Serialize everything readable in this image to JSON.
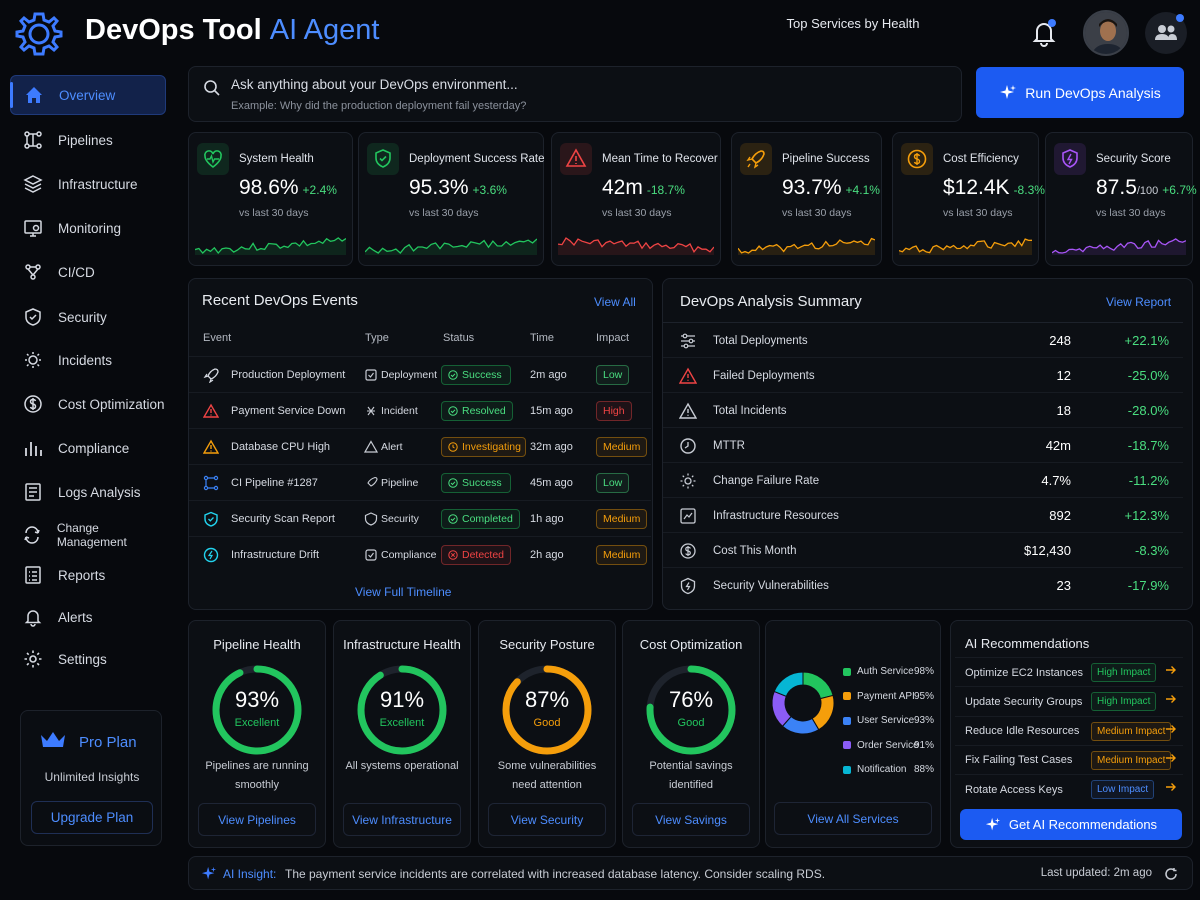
{
  "app": {
    "title_main": "DevOps Tool",
    "title_accent": "AI Agent"
  },
  "sidebar": {
    "items": [
      {
        "label": "Overview",
        "icon": "home-icon"
      },
      {
        "label": "Pipelines",
        "icon": "pipeline-icon"
      },
      {
        "label": "Infrastructure",
        "icon": "server-icon"
      },
      {
        "label": "Monitoring",
        "icon": "monitor-icon"
      },
      {
        "label": "CI/CD",
        "icon": "cicd-icon"
      },
      {
        "label": "Security",
        "icon": "shield-icon"
      },
      {
        "label": "Incidents",
        "icon": "incident-icon"
      },
      {
        "label": "Cost Optimization",
        "icon": "dollar-icon"
      },
      {
        "label": "Compliance",
        "icon": "chart-icon"
      },
      {
        "label": "Logs Analysis",
        "icon": "logs-icon"
      },
      {
        "label": "Change Management",
        "icon": "change-icon"
      },
      {
        "label": "Reports",
        "icon": "report-icon"
      },
      {
        "label": "Alerts",
        "icon": "bell-icon"
      },
      {
        "label": "Settings",
        "icon": "gear-icon"
      }
    ],
    "plan": {
      "title": "Pro Plan",
      "subtitle": "Unlimited Insights",
      "button": "Upgrade Plan"
    }
  },
  "search": {
    "placeholder": "Ask anything about your DevOps environment...",
    "example": "Example: Why did the production deployment fail yesterday?",
    "run_button": "Run DevOps Analysis"
  },
  "kpis": [
    {
      "title": "System Health",
      "value": "98.6%",
      "unit": "",
      "delta": "+2.4%",
      "sub": "vs last 30 days",
      "color": "#22c55e"
    },
    {
      "title": "Deployment Success Rate",
      "value": "95.3%",
      "unit": "",
      "delta": "+3.6%",
      "sub": "vs last 30 days",
      "color": "#22c55e"
    },
    {
      "title": "Mean Time to Recover",
      "value": "42m",
      "unit": "",
      "delta": "-18.7%",
      "sub": "vs last 30 days",
      "color": "#ef4444"
    },
    {
      "title": "Pipeline Success",
      "value": "93.7%",
      "unit": "",
      "delta": "+4.1%",
      "sub": "vs last 30 days",
      "color": "#f59e0b"
    },
    {
      "title": "Cost Efficiency",
      "value": "$12.4K",
      "unit": "",
      "delta": "-8.3%",
      "sub": "vs last 30 days",
      "color": "#f59e0b"
    },
    {
      "title": "Security Score",
      "value": "87.5",
      "unit": "/100",
      "delta": "+6.7%",
      "sub": "vs last 30 days",
      "color": "#a855f7"
    }
  ],
  "events": {
    "title": "Recent DevOps Events",
    "view_all": "View All",
    "headers": [
      "Event",
      "Type",
      "Status",
      "Time",
      "Impact"
    ],
    "rows": [
      {
        "event": "Production Deployment",
        "type": "Deployment",
        "status": "Success",
        "time": "2m ago",
        "impact": "Low"
      },
      {
        "event": "Payment Service Down",
        "type": "Incident",
        "status": "Resolved",
        "time": "15m ago",
        "impact": "High"
      },
      {
        "event": "Database CPU High",
        "type": "Alert",
        "status": "Investigating",
        "time": "32m ago",
        "impact": "Medium"
      },
      {
        "event": "CI Pipeline #1287",
        "type": "Pipeline",
        "status": "Success",
        "time": "45m ago",
        "impact": "Low"
      },
      {
        "event": "Security Scan Report",
        "type": "Security",
        "status": "Completed",
        "time": "1h ago",
        "impact": "Medium"
      },
      {
        "event": "Infrastructure Drift",
        "type": "Compliance",
        "status": "Detected",
        "time": "2h ago",
        "impact": "Medium"
      }
    ],
    "footer": "View Full Timeline"
  },
  "summary": {
    "title": "DevOps Analysis Summary",
    "view_report": "View Report",
    "rows": [
      {
        "label": "Total Deployments",
        "value": "248",
        "change": "+22.1%"
      },
      {
        "label": "Failed Deployments",
        "value": "12",
        "change": "-25.0%"
      },
      {
        "label": "Total Incidents",
        "value": "18",
        "change": "-28.0%"
      },
      {
        "label": "MTTR",
        "value": "42m",
        "change": "-18.7%"
      },
      {
        "label": "Change Failure Rate",
        "value": "4.7%",
        "change": "-11.2%"
      },
      {
        "label": "Infrastructure Resources",
        "value": "892",
        "change": "+12.3%"
      },
      {
        "label": "Cost This Month",
        "value": "$12,430",
        "change": "-8.3%"
      },
      {
        "label": "Security Vulnerabilities",
        "value": "23",
        "change": "-17.9%"
      }
    ]
  },
  "health": [
    {
      "title": "Pipeline Health",
      "value": "93%",
      "pct": 93,
      "label": "Excellent",
      "desc": "Pipelines are running smoothly",
      "button": "View Pipelines",
      "color": "#22c55e"
    },
    {
      "title": "Infrastructure Health",
      "value": "91%",
      "pct": 91,
      "label": "Excellent",
      "desc": "All systems operational",
      "button": "View Infrastructure",
      "color": "#22c55e"
    },
    {
      "title": "Security Posture",
      "value": "87%",
      "pct": 87,
      "label": "Good",
      "desc": "Some vulnerabilities need attention",
      "button": "View Security",
      "color": "#f59e0b"
    },
    {
      "title": "Cost Optimization",
      "value": "76%",
      "pct": 76,
      "label": "Good",
      "desc": "Potential savings identified",
      "button": "View Savings",
      "color": "#22c55e"
    }
  ],
  "services": {
    "title": "Top Services by Health",
    "items": [
      {
        "name": "Auth Service",
        "pct": "98%",
        "color": "#22c55e"
      },
      {
        "name": "Payment API",
        "pct": "95%",
        "color": "#f59e0b"
      },
      {
        "name": "User Service",
        "pct": "93%",
        "color": "#3b82f6"
      },
      {
        "name": "Order Service",
        "pct": "91%",
        "color": "#8b5cf6"
      },
      {
        "name": "Notification",
        "pct": "88%",
        "color": "#06b6d4"
      }
    ],
    "button": "View All Services"
  },
  "recommendations": {
    "title": "AI Recommendations",
    "items": [
      {
        "label": "Optimize EC2 Instances",
        "impact": "High Impact",
        "color": "#22c55e"
      },
      {
        "label": "Update Security Groups",
        "impact": "High Impact",
        "color": "#22c55e"
      },
      {
        "label": "Reduce Idle Resources",
        "impact": "Medium Impact",
        "color": "#f59e0b"
      },
      {
        "label": "Fix Failing Test Cases",
        "impact": "Medium Impact",
        "color": "#f59e0b"
      },
      {
        "label": "Rotate Access Keys",
        "impact": "Low Impact",
        "color": "#3b82f6"
      }
    ],
    "button": "Get AI Recommendations"
  },
  "insight": {
    "label": "AI Insight:",
    "text": "The payment service incidents are correlated with increased database latency. Consider scaling RDS.",
    "updated": "Last updated: 2m ago"
  }
}
